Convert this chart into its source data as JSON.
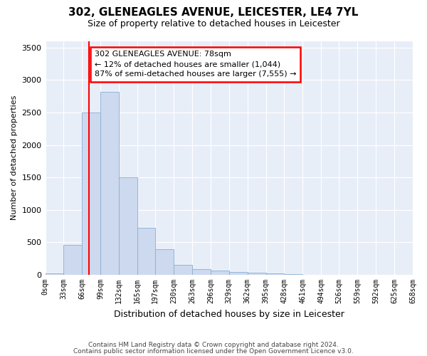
{
  "title1": "302, GLENEAGLES AVENUE, LEICESTER, LE4 7YL",
  "title2": "Size of property relative to detached houses in Leicester",
  "xlabel": "Distribution of detached houses by size in Leicester",
  "ylabel": "Number of detached properties",
  "footnote1": "Contains HM Land Registry data © Crown copyright and database right 2024.",
  "footnote2": "Contains public sector information licensed under the Open Government Licence v3.0.",
  "annotation_title": "302 GLENEAGLES AVENUE: 78sqm",
  "annotation_line1": "← 12% of detached houses are smaller (1,044)",
  "annotation_line2": "87% of semi-detached houses are larger (7,555) →",
  "bar_color": "#ccd9ee",
  "bar_edge_color": "#8aafd4",
  "background_color": "#e8eef8",
  "red_line_x": 78,
  "tick_labels": [
    "0sqm",
    "33sqm",
    "66sqm",
    "99sqm",
    "132sqm",
    "165sqm",
    "197sqm",
    "230sqm",
    "263sqm",
    "296sqm",
    "329sqm",
    "362sqm",
    "395sqm",
    "428sqm",
    "461sqm",
    "494sqm",
    "526sqm",
    "559sqm",
    "592sqm",
    "625sqm",
    "658sqm"
  ],
  "bin_edges": [
    0,
    33,
    66,
    99,
    132,
    165,
    197,
    230,
    263,
    296,
    329,
    362,
    395,
    428,
    461,
    494,
    526,
    559,
    592,
    625,
    658
  ],
  "bar_heights": [
    20,
    460,
    2500,
    2820,
    1500,
    720,
    390,
    150,
    90,
    65,
    45,
    30,
    20,
    10,
    5,
    3,
    2,
    1,
    1,
    0,
    0
  ],
  "ylim": [
    0,
    3600
  ],
  "yticks": [
    0,
    500,
    1000,
    1500,
    2000,
    2500,
    3000,
    3500
  ],
  "title1_fontsize": 11,
  "title2_fontsize": 9,
  "xlabel_fontsize": 9,
  "ylabel_fontsize": 8,
  "tick_fontsize": 7,
  "annotation_fontsize": 8
}
